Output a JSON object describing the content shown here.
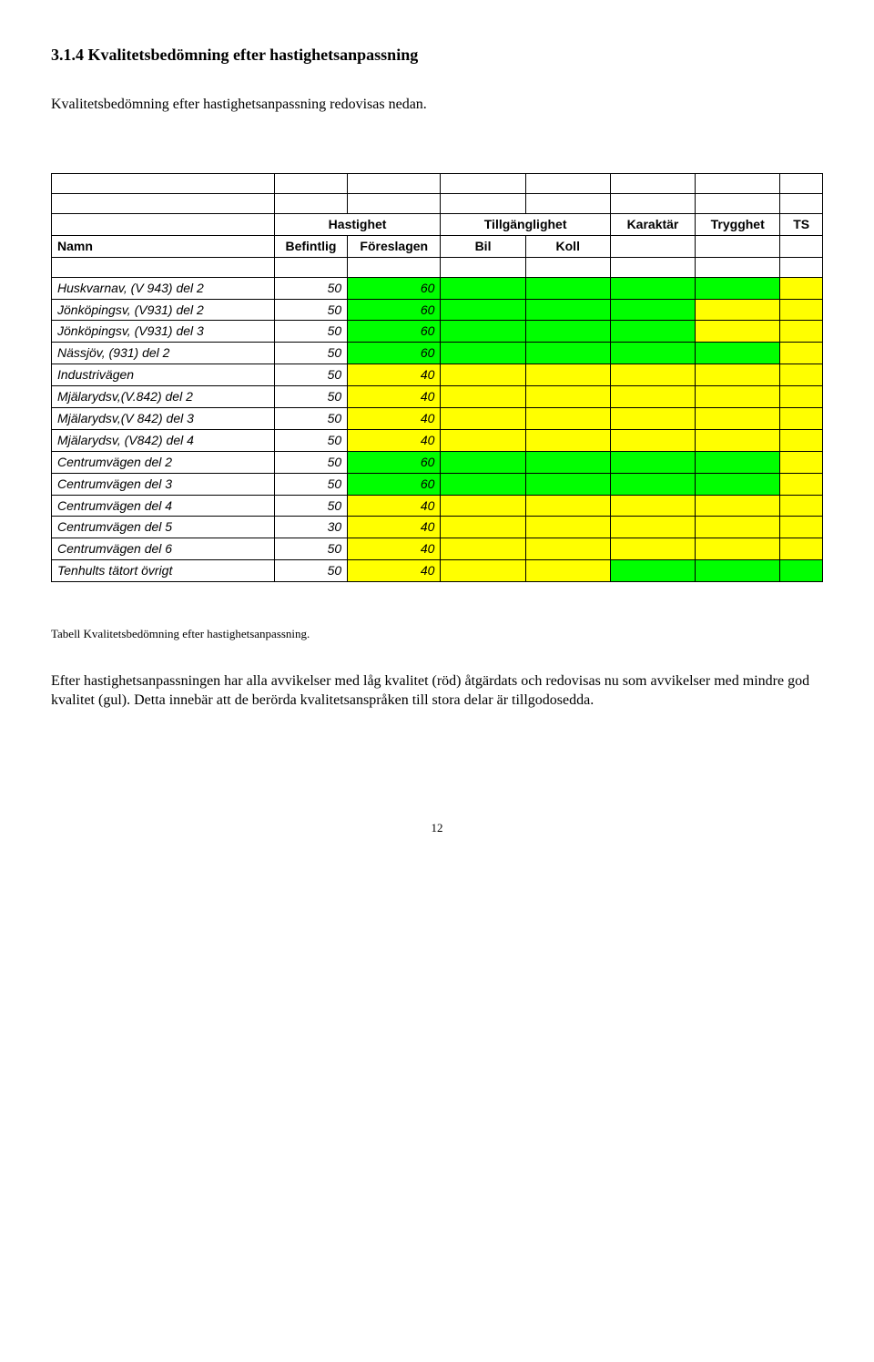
{
  "heading": "3.1.4 Kvalitetsbedömning efter hastighetsanpassning",
  "intro": "Kvalitetsbedömning efter hastighetsanpassning redovisas nedan.",
  "colors": {
    "green": "#00ff00",
    "yellow": "#ffff00",
    "white": "#ffffff"
  },
  "table": {
    "group_headers": {
      "hastighet": "Hastighet",
      "tillganglighet": "Tillgänglighet",
      "karaktar": "Karaktär",
      "trygghet": "Trygghet",
      "ts": "TS"
    },
    "sub_headers": {
      "namn": "Namn",
      "befintlig": "Befintlig",
      "foreslagen": "Föreslagen",
      "bil": "Bil",
      "koll": "Koll"
    },
    "rows": [
      {
        "name": "Huskvarnav, (V 943) del 2",
        "bef": "50",
        "for": "60",
        "for_bg": "green",
        "bil": "green",
        "koll": "green",
        "kar": "green",
        "try": "green",
        "ts": "yellow"
      },
      {
        "name": "Jönköpingsv, (V931) del 2",
        "bef": "50",
        "for": "60",
        "for_bg": "green",
        "bil": "green",
        "koll": "green",
        "kar": "green",
        "try": "yellow",
        "ts": "yellow"
      },
      {
        "name": "Jönköpingsv, (V931) del 3",
        "bef": "50",
        "for": "60",
        "for_bg": "green",
        "bil": "green",
        "koll": "green",
        "kar": "green",
        "try": "yellow",
        "ts": "yellow"
      },
      {
        "name": "Nässjöv, (931) del 2",
        "bef": "50",
        "for": "60",
        "for_bg": "green",
        "bil": "green",
        "koll": "green",
        "kar": "green",
        "try": "green",
        "ts": "yellow"
      },
      {
        "name": "Industrivägen",
        "bef": "50",
        "for": "40",
        "for_bg": "yellow",
        "bil": "yellow",
        "koll": "yellow",
        "kar": "yellow",
        "try": "yellow",
        "ts": "yellow"
      },
      {
        "name": "Mjälarydsv,(V.842) del 2",
        "bef": "50",
        "for": "40",
        "for_bg": "yellow",
        "bil": "yellow",
        "koll": "yellow",
        "kar": "yellow",
        "try": "yellow",
        "ts": "yellow"
      },
      {
        "name": "Mjälarydsv,(V 842) del 3",
        "bef": "50",
        "for": "40",
        "for_bg": "yellow",
        "bil": "yellow",
        "koll": "yellow",
        "kar": "yellow",
        "try": "yellow",
        "ts": "yellow"
      },
      {
        "name": "Mjälarydsv, (V842) del 4",
        "bef": "50",
        "for": "40",
        "for_bg": "yellow",
        "bil": "yellow",
        "koll": "yellow",
        "kar": "yellow",
        "try": "yellow",
        "ts": "yellow"
      },
      {
        "name": "Centrumvägen del 2",
        "bef": "50",
        "for": "60",
        "for_bg": "green",
        "bil": "green",
        "koll": "green",
        "kar": "green",
        "try": "green",
        "ts": "yellow"
      },
      {
        "name": "Centrumvägen del 3",
        "bef": "50",
        "for": "60",
        "for_bg": "green",
        "bil": "green",
        "koll": "green",
        "kar": "green",
        "try": "green",
        "ts": "yellow"
      },
      {
        "name": "Centrumvägen del 4",
        "bef": "50",
        "for": "40",
        "for_bg": "yellow",
        "bil": "yellow",
        "koll": "yellow",
        "kar": "yellow",
        "try": "yellow",
        "ts": "yellow"
      },
      {
        "name": "Centrumvägen del 5",
        "bef": "30",
        "for": "40",
        "for_bg": "yellow",
        "bil": "yellow",
        "koll": "yellow",
        "kar": "yellow",
        "try": "yellow",
        "ts": "yellow"
      },
      {
        "name": "Centrumvägen del 6",
        "bef": "50",
        "for": "40",
        "for_bg": "yellow",
        "bil": "yellow",
        "koll": "yellow",
        "kar": "yellow",
        "try": "yellow",
        "ts": "yellow"
      },
      {
        "name": "Tenhults tätort övrigt",
        "bef": "50",
        "for": "40",
        "for_bg": "yellow",
        "bil": "yellow",
        "koll": "yellow",
        "kar": "green",
        "try": "green",
        "ts": "green"
      }
    ]
  },
  "caption": "Tabell Kvalitetsbedömning efter hastighetsanpassning.",
  "para2": "Efter hastighetsanpassningen har alla avvikelser med låg kvalitet (röd) åtgärdats och redovisas nu som avvikelser med mindre god kvalitet (gul). Detta innebär att de berörda kvalitetsanspråken till stora delar är tillgodosedda.",
  "page_number": "12"
}
